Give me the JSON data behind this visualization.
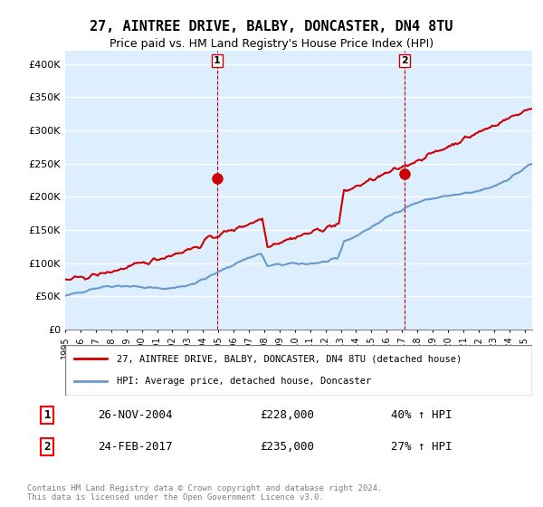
{
  "title": "27, AINTREE DRIVE, BALBY, DONCASTER, DN4 8TU",
  "subtitle": "Price paid vs. HM Land Registry's House Price Index (HPI)",
  "legend_line1": "27, AINTREE DRIVE, BALBY, DONCASTER, DN4 8TU (detached house)",
  "legend_line2": "HPI: Average price, detached house, Doncaster",
  "transaction1_label": "1",
  "transaction1_date": "26-NOV-2004",
  "transaction1_price": "£228,000",
  "transaction1_hpi": "40% ↑ HPI",
  "transaction2_label": "2",
  "transaction2_date": "24-FEB-2017",
  "transaction2_price": "£235,000",
  "transaction2_hpi": "27% ↑ HPI",
  "footnote": "Contains HM Land Registry data © Crown copyright and database right 2024.\nThis data is licensed under the Open Government Licence v3.0.",
  "hpi_color": "#6699cc",
  "price_color": "#cc0000",
  "vline_color": "#cc0000",
  "background_color": "#ddeeff",
  "plot_bg": "#ffffff",
  "ylim": [
    0,
    420000
  ],
  "yticks": [
    0,
    50000,
    100000,
    150000,
    200000,
    250000,
    300000,
    350000,
    400000
  ],
  "year_start": 1995,
  "year_end": 2025
}
